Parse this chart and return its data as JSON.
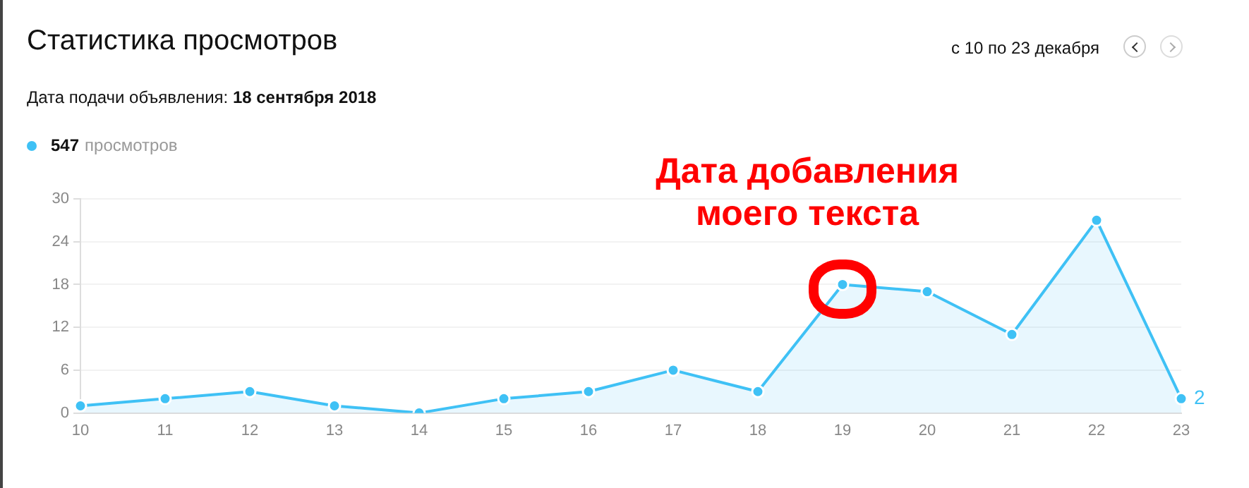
{
  "chart_data": {
    "type": "area",
    "title": "Статистика просмотров",
    "subtitle": "Дата подачи объявления: 18 сентября 2018",
    "annotations": [
      "с 10 по 23 декабря",
      {
        "text": "Дата добавления\nмоего текста",
        "x": "19",
        "y": 18
      }
    ],
    "categories": [
      "10",
      "11",
      "12",
      "13",
      "14",
      "15",
      "16",
      "17",
      "18",
      "19",
      "20",
      "21",
      "22",
      "23"
    ],
    "series": [
      {
        "name": "547 просмотров",
        "color": "#3fc1f5",
        "values": [
          1,
          2,
          3,
          1,
          0,
          2,
          3,
          6,
          3,
          18,
          17,
          11,
          27,
          2
        ],
        "value_labels": [
          null,
          null,
          null,
          null,
          null,
          null,
          null,
          null,
          null,
          null,
          null,
          null,
          null,
          "2"
        ]
      }
    ],
    "ylim": [
      0,
      30
    ],
    "yticks": [
      0,
      6,
      12,
      18,
      24,
      30
    ],
    "grid": "y",
    "legend": "top left",
    "marker": "circle",
    "line_style": "solid"
  }
}
